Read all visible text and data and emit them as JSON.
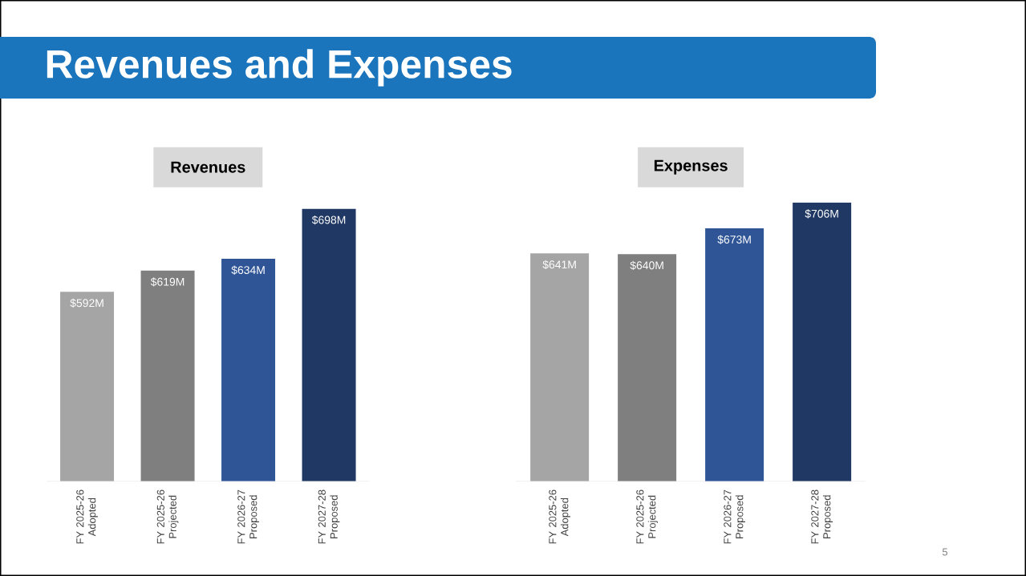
{
  "chart_data": [
    {
      "type": "other",
      "title": "Revenues and Expenses",
      "annotations": [
        "5"
      ]
    },
    {
      "type": "bar",
      "title": "Revenues",
      "categories": [
        "FY 2025-26 Adopted",
        "FY 2025-26 Projected",
        "FY 2026-27 Proposed",
        "FY 2027-28 Proposed"
      ],
      "values": [
        592,
        619,
        634,
        698
      ],
      "value_labels": [
        "$592M",
        "$619M",
        "$634M",
        "$698M"
      ],
      "colors": [
        "#a5a5a5",
        "#7f7f7f",
        "#2f5597",
        "#203864"
      ],
      "ylim": [
        350,
        698
      ],
      "tick_labels": "x"
    },
    {
      "type": "bar",
      "title": "Expenses",
      "categories": [
        "FY 2025-26 Adopted",
        "FY 2025-26 Projected",
        "FY 2026-27 Proposed",
        "FY 2027-28 Proposed"
      ],
      "values": [
        641,
        640,
        673,
        706
      ],
      "value_labels": [
        "$641M",
        "$640M",
        "$673M",
        "$706M"
      ],
      "colors": [
        "#a5a5a5",
        "#7f7f7f",
        "#2f5597",
        "#203864"
      ],
      "ylim": [
        350,
        706
      ],
      "tick_labels": "x"
    }
  ]
}
